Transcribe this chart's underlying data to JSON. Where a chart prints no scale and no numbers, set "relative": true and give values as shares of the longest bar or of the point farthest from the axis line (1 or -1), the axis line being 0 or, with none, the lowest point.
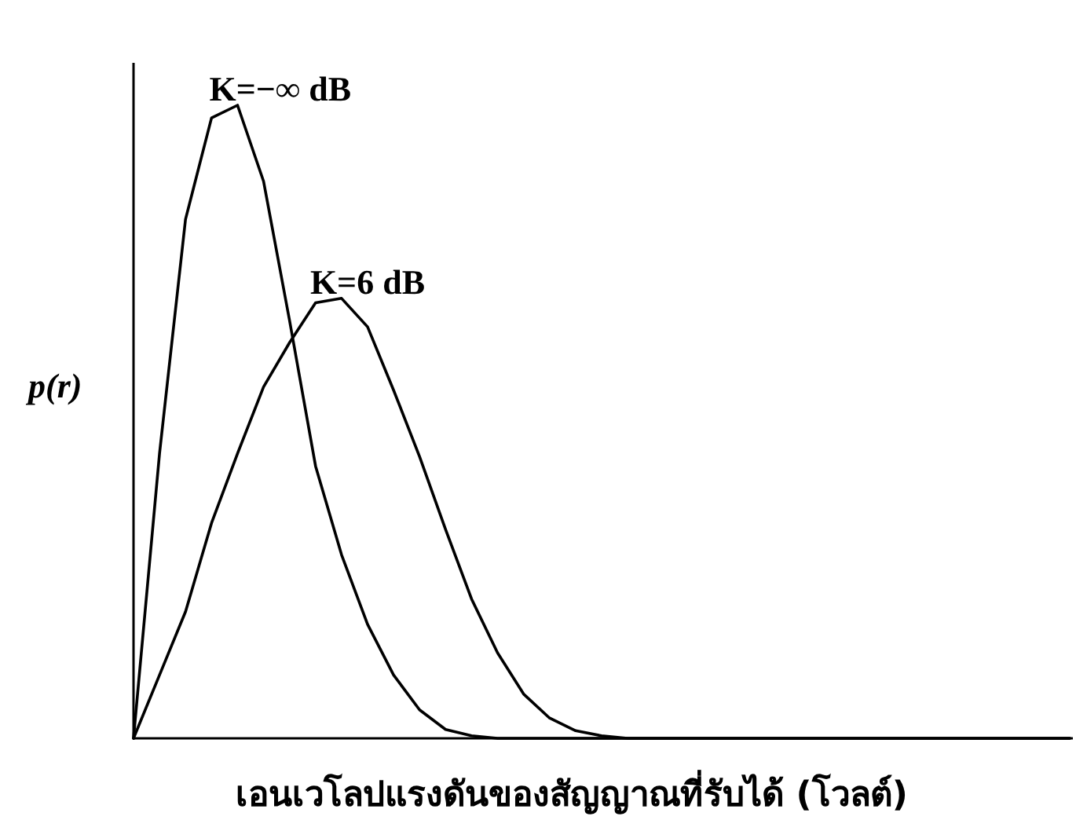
{
  "chart_data": {
    "type": "line",
    "relative": true,
    "ylabel": "p(r)",
    "xlabel": "เอนเวโลปแรงดันของสัญญาณที่รับได้ (โวลต์)",
    "categories": [
      null,
      null,
      null,
      null,
      null,
      null,
      null,
      null,
      null,
      null,
      null,
      null,
      null,
      null,
      null,
      null,
      null,
      null,
      null,
      null,
      null,
      null,
      null,
      null,
      null,
      null,
      null,
      null,
      null,
      null,
      null,
      null,
      null,
      null,
      null,
      null,
      null
    ],
    "series": [
      {
        "name": "K=−∞ dB",
        "color": "#000000",
        "values": [
          0,
          0.45,
          0.82,
          0.98,
          1,
          0.88,
          0.66,
          0.43,
          0.29,
          0.18,
          0.1,
          0.045,
          0.014,
          0.004,
          0,
          0,
          0,
          0,
          0,
          0,
          0,
          0,
          0,
          0,
          0,
          0,
          0,
          0,
          0,
          0,
          0,
          0,
          0,
          0,
          0,
          0,
          0
        ]
      },
      {
        "name": "K=6 dB",
        "color": "#000000",
        "values": [
          0,
          0.1,
          0.2,
          0.34,
          0.45,
          0.555,
          0.625,
          0.688,
          0.695,
          0.65,
          0.55,
          0.445,
          0.33,
          0.22,
          0.135,
          0.07,
          0.032,
          0.012,
          0.004,
          0,
          0,
          0,
          0,
          0,
          0,
          0,
          0,
          0,
          0,
          0,
          0,
          0,
          0,
          0,
          0,
          0,
          0
        ]
      }
    ]
  }
}
